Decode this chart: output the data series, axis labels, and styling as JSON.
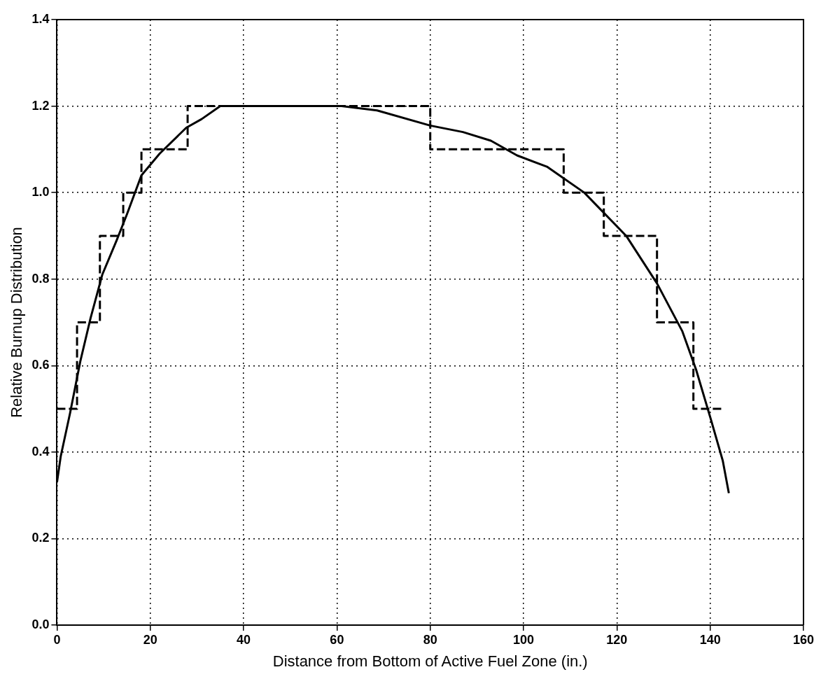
{
  "chart_data": {
    "type": "line",
    "xlabel": "Distance from Bottom of Active Fuel Zone (in.)",
    "ylabel": "Relative Burnup Distribution",
    "xlim": [
      0,
      160
    ],
    "xticks": [
      0,
      20,
      40,
      60,
      80,
      100,
      120,
      140,
      160
    ],
    "ylim": [
      0,
      1.4
    ],
    "yticks": [
      {
        "value": 0,
        "label": "0.0"
      },
      0.2,
      0.4,
      0.6,
      0.8,
      {
        "value": 1,
        "label": "1.0"
      },
      1.2,
      1.4
    ],
    "grid": true,
    "legend": false,
    "marker": "none",
    "series": [
      {
        "type": "step",
        "color": "#000000",
        "line_style": "dashed",
        "x": [
          0,
          4.3,
          9.2,
          14.2,
          18.1,
          28,
          80,
          108.6,
          117.2,
          128.6,
          136.4,
          143
        ],
        "values": [
          0.5,
          0.7,
          0.9,
          1.0,
          1.1,
          1.2,
          1.1,
          1.0,
          0.9,
          0.7,
          0.5,
          0.5
        ]
      },
      {
        "color": "#000000",
        "line_style": "solid",
        "x": [
          0,
          0.8,
          2.8,
          5,
          7.2,
          9.7,
          12.8,
          15,
          18.1,
          22,
          27.7,
          31,
          35,
          61,
          68.6,
          80,
          87,
          93,
          98.6,
          105,
          113,
          122,
          128.6,
          134,
          137,
          140.3,
          142.7,
          144
        ],
        "values": [
          0.33,
          0.39,
          0.49,
          0.61,
          0.71,
          0.81,
          0.89,
          0.95,
          1.04,
          1.09,
          1.15,
          1.17,
          1.2,
          1.2,
          1.19,
          1.155,
          1.14,
          1.12,
          1.086,
          1.06,
          1.0,
          0.9,
          0.79,
          0.68,
          0.59,
          0.47,
          0.38,
          0.305
        ]
      }
    ]
  }
}
